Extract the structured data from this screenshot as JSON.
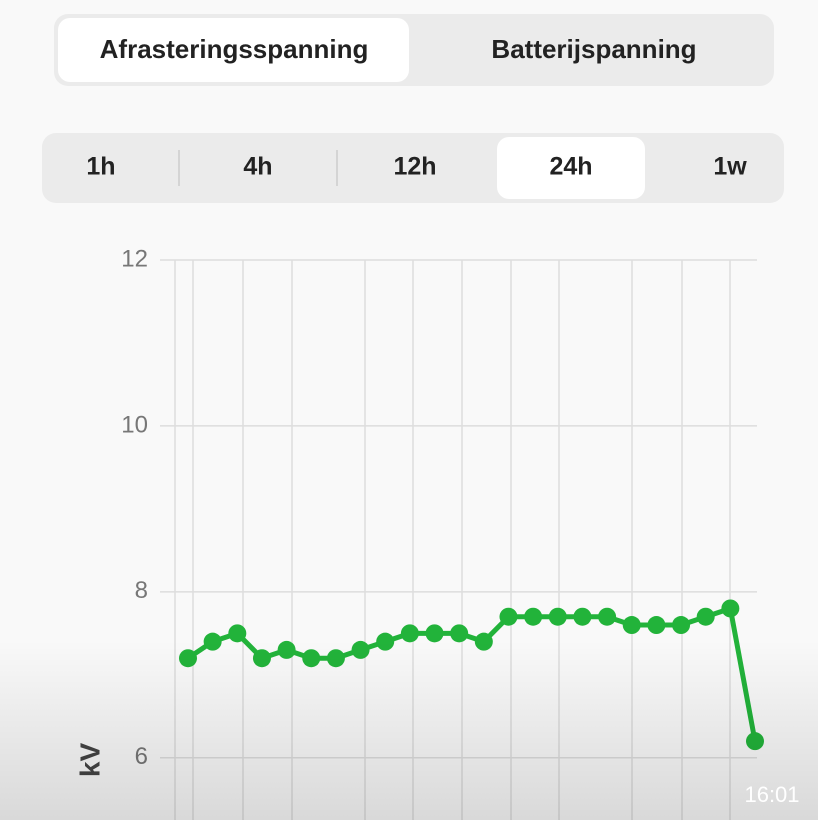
{
  "tabs": {
    "items": [
      "Afrasteringsspanning",
      "Batterijspanning"
    ],
    "selected": 0
  },
  "ranges": {
    "items": [
      "1h",
      "4h",
      "12h",
      "24h",
      "1w"
    ],
    "selected": 3
  },
  "timestamp": "16:01",
  "chart_data": {
    "type": "line",
    "ylabel": "kV",
    "categories": [
      null,
      null,
      null,
      null,
      null,
      null,
      null,
      null,
      null,
      null,
      null,
      null,
      null,
      null,
      null,
      null,
      null,
      null,
      null,
      null,
      null,
      null,
      null,
      null
    ],
    "series": [
      {
        "name": null,
        "color": "#22b33a",
        "values": [
          7.2,
          7.4,
          7.5,
          7.2,
          7.3,
          7.2,
          7.2,
          7.3,
          7.4,
          7.5,
          7.5,
          7.5,
          7.4,
          7.7,
          7.7,
          7.7,
          7.7,
          7.7,
          7.6,
          7.6,
          7.6,
          7.7,
          7.8,
          6.2
        ]
      }
    ],
    "ylim": [
      5.25,
      12
    ],
    "yticks": [
      6,
      8,
      10,
      12
    ],
    "grid": true
  }
}
